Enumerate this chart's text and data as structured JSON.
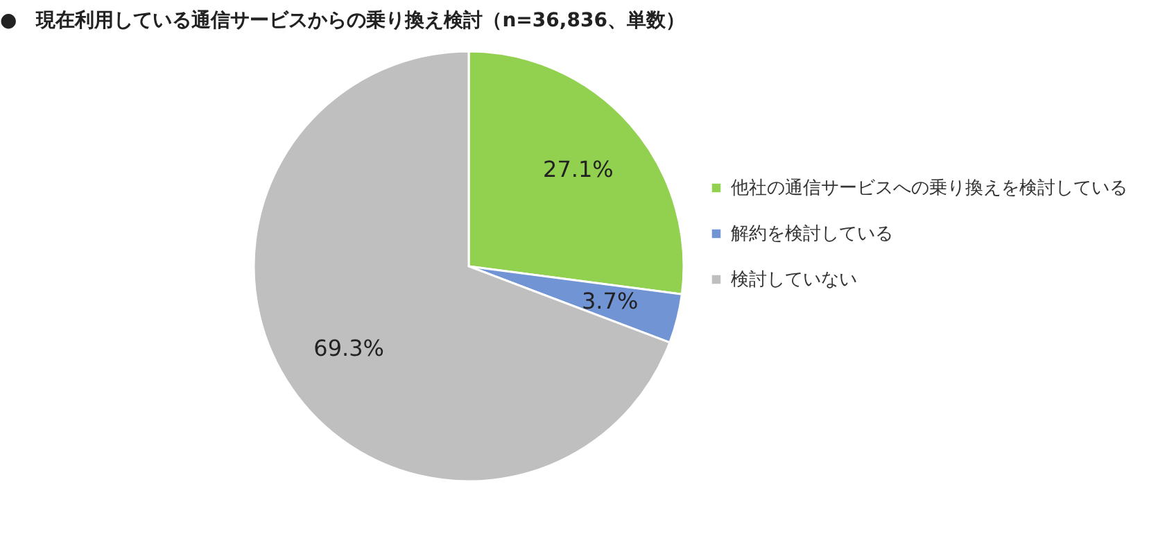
{
  "chart_data": {
    "type": "pie",
    "title": "●　現在利用している通信サービスからの乗り換え検討（n=36,836、単数）",
    "categories": [
      "他社の通信サービスへの乗り換えを検討している",
      "解約を検討している",
      "検討していない"
    ],
    "values": [
      27.1,
      3.7,
      69.3
    ],
    "colors": [
      "#92d050",
      "#7094d4",
      "#bfbfbf"
    ],
    "value_labels": [
      "27.1%",
      "3.7%",
      "69.3%"
    ],
    "legend": "right"
  }
}
